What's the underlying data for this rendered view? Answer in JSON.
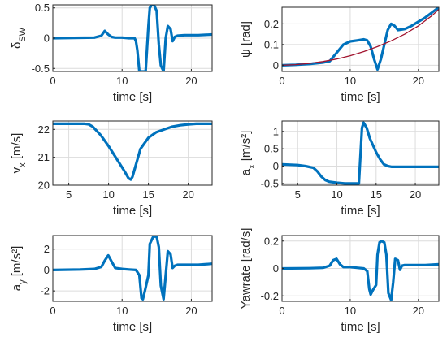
{
  "chart_data": [
    {
      "type": "line",
      "xlabel": "time [s]",
      "ylabel": "δ",
      "ylabel_sub": "SW",
      "xlim": [
        0,
        23
      ],
      "ylim": [
        -0.55,
        0.55
      ],
      "xticks": [
        0,
        10,
        20
      ],
      "yticks": [
        -0.5,
        0,
        0.5
      ],
      "grid": true,
      "series": [
        {
          "color": "#0072BD",
          "x": [
            0,
            3,
            6,
            7,
            7.5,
            8,
            8.5,
            9,
            10,
            11,
            11.8,
            12,
            12.2,
            12.5,
            13,
            13.4,
            13.8,
            14,
            14.3,
            14.6,
            15,
            15.3,
            15.6,
            16,
            16.3,
            16.6,
            17,
            17.3,
            17.6,
            18,
            19,
            20,
            21,
            23
          ],
          "y": [
            0,
            0.005,
            0.01,
            0.04,
            0.12,
            0.06,
            0.02,
            0.01,
            0.01,
            0.0,
            0.0,
            -0.05,
            -0.2,
            -0.55,
            -0.55,
            -0.55,
            0.2,
            0.5,
            0.55,
            0.55,
            0.45,
            -0.1,
            -0.45,
            -0.55,
            0.0,
            0.2,
            0.15,
            -0.05,
            0.02,
            0.04,
            0.05,
            0.05,
            0.05,
            0.06
          ]
        }
      ]
    },
    {
      "type": "line",
      "xlabel": "time [s]",
      "ylabel": "ψ [rad]",
      "xlim": [
        0,
        23
      ],
      "ylim": [
        -0.03,
        0.28
      ],
      "xticks": [
        0,
        10,
        20
      ],
      "yticks": [
        0,
        0.1,
        0.2
      ],
      "grid": true,
      "series": [
        {
          "color": "#0072BD",
          "x": [
            0,
            2,
            4,
            6,
            7,
            8,
            9,
            10,
            11,
            12,
            12.5,
            13,
            13.5,
            14,
            14.5,
            15,
            15.5,
            16,
            16.5,
            17,
            18,
            19,
            20,
            21,
            22,
            23
          ],
          "y": [
            0,
            0.002,
            0.006,
            0.013,
            0.02,
            0.06,
            0.1,
            0.115,
            0.12,
            0.125,
            0.12,
            0.09,
            0.03,
            -0.02,
            0.03,
            0.1,
            0.17,
            0.2,
            0.19,
            0.17,
            0.175,
            0.19,
            0.21,
            0.23,
            0.255,
            0.28
          ]
        },
        {
          "color": "#A2142F",
          "x": [
            0,
            2,
            4,
            6,
            8,
            10,
            12,
            14,
            16,
            18,
            20,
            22,
            23
          ],
          "y": [
            0,
            0.003,
            0.009,
            0.018,
            0.03,
            0.046,
            0.066,
            0.09,
            0.118,
            0.15,
            0.19,
            0.24,
            0.27
          ]
        }
      ]
    },
    {
      "type": "line",
      "xlabel": "time [s]",
      "ylabel": "v",
      "ylabel_sub": "x",
      "ylabel_unit": "[m/s]",
      "xlim": [
        3,
        23
      ],
      "ylim": [
        20,
        22.3
      ],
      "xticks": [
        5,
        10,
        15,
        20
      ],
      "yticks": [
        20,
        21,
        22
      ],
      "grid": true,
      "series": [
        {
          "color": "#0072BD",
          "x": [
            3,
            5,
            7,
            7.5,
            8,
            9,
            10,
            11,
            12,
            12.5,
            12.8,
            13,
            13.5,
            14,
            15,
            16,
            17,
            18,
            19,
            20,
            21,
            22,
            23
          ],
          "y": [
            22.2,
            22.2,
            22.2,
            22.18,
            22.1,
            21.8,
            21.4,
            20.95,
            20.5,
            20.25,
            20.2,
            20.3,
            20.8,
            21.3,
            21.7,
            21.9,
            22.0,
            22.1,
            22.15,
            22.18,
            22.2,
            22.2,
            22.2
          ]
        }
      ]
    },
    {
      "type": "line",
      "xlabel": "time [s]",
      "ylabel": "a",
      "ylabel_sub": "x",
      "ylabel_unit": "[m/s²]",
      "xlim": [
        3,
        23
      ],
      "ylim": [
        -0.55,
        1.3
      ],
      "xticks": [
        5,
        10,
        15,
        20
      ],
      "yticks": [
        -0.5,
        0,
        0.5,
        1
      ],
      "grid": true,
      "series": [
        {
          "color": "#0072BD",
          "x": [
            3,
            5,
            6,
            7,
            7.5,
            8,
            8.5,
            9,
            10,
            11,
            12,
            12.8,
            13,
            13.2,
            13.4,
            13.8,
            14.2,
            15,
            15.5,
            16,
            16.5,
            17,
            18,
            19,
            20,
            21,
            22,
            23
          ],
          "y": [
            0.05,
            0.03,
            0.0,
            -0.05,
            -0.15,
            -0.3,
            -0.4,
            -0.45,
            -0.48,
            -0.5,
            -0.5,
            -0.5,
            0.3,
            1.1,
            1.25,
            1.1,
            0.8,
            0.4,
            0.2,
            0.05,
            0.0,
            -0.02,
            -0.02,
            -0.02,
            -0.02,
            -0.02,
            -0.02,
            -0.02
          ]
        }
      ]
    },
    {
      "type": "line",
      "xlabel": "time [s]",
      "ylabel": "a",
      "ylabel_sub": "y",
      "ylabel_unit": "[m/s²]",
      "xlim": [
        0,
        23
      ],
      "ylim": [
        -3,
        3.3
      ],
      "xticks": [
        0,
        10,
        20
      ],
      "yticks": [
        -2,
        0,
        2
      ],
      "grid": true,
      "series": [
        {
          "color": "#0072BD",
          "x": [
            0,
            4,
            6,
            7,
            7.5,
            8,
            8.5,
            9,
            10,
            11,
            12,
            12.5,
            12.8,
            13,
            13.3,
            13.8,
            14,
            14.5,
            15,
            15.3,
            15.6,
            16,
            16.3,
            16.6,
            17,
            17.3,
            17.6,
            18,
            19,
            20,
            21,
            23
          ],
          "y": [
            0,
            0.05,
            0.1,
            0.3,
            0.9,
            1.4,
            0.8,
            0.2,
            0.1,
            0.05,
            0.0,
            -0.5,
            -2.7,
            -2.8,
            -2.0,
            -0.5,
            2.5,
            3.2,
            3.2,
            2.2,
            -1.5,
            -2.8,
            -0.5,
            1.8,
            1.5,
            0.2,
            0.4,
            0.5,
            0.5,
            0.5,
            0.5,
            0.6
          ]
        }
      ]
    },
    {
      "type": "line",
      "xlabel": "time [s]",
      "ylabel": "Yawrate [rad/s]",
      "xlim": [
        0,
        23
      ],
      "ylim": [
        -0.24,
        0.24
      ],
      "xticks": [
        0,
        10,
        20
      ],
      "yticks": [
        -0.2,
        0,
        0.2
      ],
      "grid": true,
      "series": [
        {
          "color": "#0072BD",
          "x": [
            0,
            4,
            6,
            7,
            7.5,
            8,
            8.5,
            9,
            10,
            11,
            12,
            12.5,
            12.8,
            13,
            13.3,
            13.8,
            14,
            14.3,
            14.6,
            15,
            15.3,
            15.6,
            16,
            16.3,
            16.6,
            17,
            17.3,
            17.6,
            18,
            19,
            20,
            21,
            23
          ],
          "y": [
            0,
            0.002,
            0.005,
            0.02,
            0.06,
            0.07,
            0.03,
            0.01,
            0.01,
            0.005,
            0.0,
            -0.02,
            -0.15,
            -0.19,
            -0.16,
            -0.12,
            0.1,
            0.19,
            0.2,
            0.19,
            0.1,
            -0.18,
            -0.23,
            -0.1,
            0.07,
            0.06,
            -0.01,
            0.02,
            0.025,
            0.025,
            0.025,
            0.025,
            0.03
          ]
        }
      ]
    }
  ]
}
